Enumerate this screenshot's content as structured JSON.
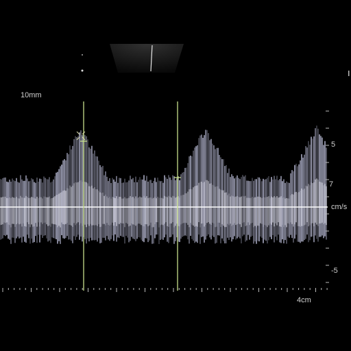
{
  "depth_label": "10mm",
  "velocity_scale": {
    "top_label": "5",
    "mid_label": "7",
    "unit": "cm/s",
    "bottom_label": "-5"
  },
  "time_scale_label": "4cm",
  "colors": {
    "background": "#000000",
    "spectrum": "#c9cbe8",
    "baseline": "#ffffff",
    "caliper": "#c8e08c"
  }
}
